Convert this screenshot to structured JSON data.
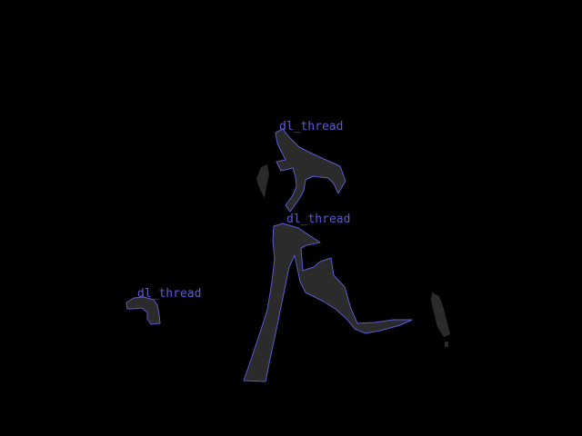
{
  "colors": {
    "background": "#000000",
    "region_fill": "#2b2b2b",
    "outline": "#5a5ad2",
    "label": "#5a5ad2"
  },
  "labels": {
    "upper_region": "dl_thread",
    "lower_region": "dl_thread",
    "left_region": "dl_thread"
  }
}
